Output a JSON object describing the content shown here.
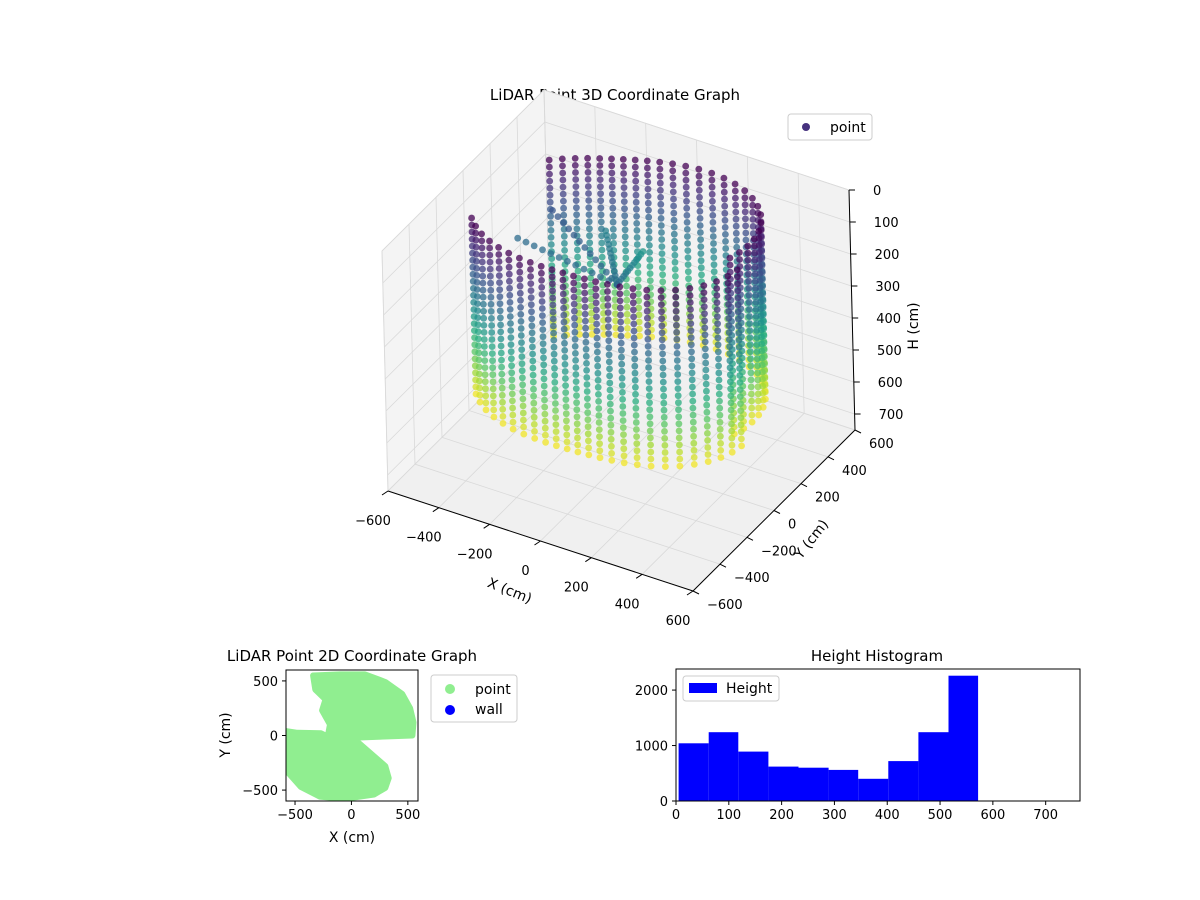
{
  "figure": {
    "background": "#ffffff"
  },
  "chart_data": [
    {
      "type": "scatter3d",
      "title": "LiDAR Point 3D Coordinate Graph",
      "xlabel": "X (cm)",
      "ylabel": "Y (cm)",
      "zlabel": "H (cm)",
      "xlim": [
        -600,
        600
      ],
      "ylim": [
        -600,
        600
      ],
      "zlim": [
        0,
        750
      ],
      "z_inverted": true,
      "x_ticks": [
        -600,
        -400,
        -200,
        0,
        200,
        400,
        600
      ],
      "x_tick_labels": [
        "−600",
        "−400",
        "−200",
        "0",
        "200",
        "400",
        "600"
      ],
      "y_ticks": [
        -600,
        -400,
        -200,
        0,
        200,
        400,
        600
      ],
      "y_tick_labels": [
        "−600",
        "−400",
        "−200",
        "0",
        "200",
        "400",
        "600"
      ],
      "z_ticks": [
        0,
        100,
        200,
        300,
        400,
        500,
        600,
        700
      ],
      "z_tick_labels": [
        "0",
        "100",
        "200",
        "300",
        "400",
        "500",
        "600",
        "700"
      ],
      "grid": true,
      "colormap": "viridis",
      "color_by": "height",
      "legend": {
        "position": "top-right",
        "entries": [
          {
            "label": "point",
            "color": "#46327e"
          }
        ]
      },
      "series": [
        {
          "name": "point",
          "description_shape": "ring of wall scan columns",
          "ring_radius": 450,
          "ring_gap_angle_range_deg": [
            150,
            210
          ],
          "column_height_range": [
            0,
            560
          ],
          "spoke_rays": [
            {
              "from": [
                0,
                0,
                200
              ],
              "to": [
                -450,
                80,
                200
              ]
            },
            {
              "from": [
                0,
                0,
                200
              ],
              "to": [
                -380,
                220,
                150
              ]
            },
            {
              "from": [
                0,
                0,
                200
              ],
              "to": [
                -250,
                380,
                250
              ]
            },
            {
              "from": [
                0,
                0,
                200
              ],
              "to": [
                -120,
                420,
                300
              ]
            }
          ]
        }
      ]
    },
    {
      "type": "scatter",
      "title": "LiDAR Point 2D Coordinate Graph",
      "xlabel": "X (cm)",
      "ylabel": "Y (cm)",
      "xlim": [
        -580,
        590
      ],
      "ylim": [
        -600,
        600
      ],
      "x_ticks": [
        -500,
        0,
        500
      ],
      "x_tick_labels": [
        "−500",
        "0",
        "500"
      ],
      "y_ticks": [
        -500,
        0,
        500
      ],
      "y_tick_labels": [
        "−500",
        "0",
        "500"
      ],
      "legend": {
        "position": "right-outside",
        "entries": [
          {
            "label": "point",
            "color": "#90ee90"
          },
          {
            "label": "wall",
            "color": "#0000ff"
          }
        ]
      },
      "series": [
        {
          "name": "point",
          "color": "#90ee90",
          "region_outline": [
            [
              -340,
              550
            ],
            [
              -100,
              560
            ],
            [
              120,
              560
            ],
            [
              300,
              490
            ],
            [
              450,
              380
            ],
            [
              520,
              250
            ],
            [
              550,
              120
            ],
            [
              540,
              0
            ],
            [
              10,
              -20
            ],
            [
              300,
              -280
            ],
            [
              330,
              -390
            ],
            [
              300,
              -480
            ],
            [
              200,
              -540
            ],
            [
              -60,
              -580
            ],
            [
              -280,
              -560
            ],
            [
              -450,
              -470
            ],
            [
              -570,
              -330
            ],
            [
              -590,
              -130
            ],
            [
              -580,
              40
            ],
            [
              -480,
              25
            ],
            [
              -270,
              20
            ],
            [
              -210,
              -10
            ],
            [
              -190,
              100
            ],
            [
              -260,
              230
            ],
            [
              -230,
              330
            ],
            [
              -320,
              420
            ]
          ]
        },
        {
          "name": "wall",
          "color": "#0000ff",
          "points": []
        }
      ]
    },
    {
      "type": "bar",
      "title": "Height Histogram",
      "xlabel": "",
      "ylabel": "",
      "xlim": [
        0,
        765
      ],
      "ylim": [
        0,
        2380
      ],
      "x_ticks": [
        0,
        100,
        200,
        300,
        400,
        500,
        600,
        700
      ],
      "x_tick_labels": [
        "0",
        "100",
        "200",
        "300",
        "400",
        "500",
        "600",
        "700"
      ],
      "y_ticks": [
        0,
        1000,
        2000
      ],
      "y_tick_labels": [
        "0",
        "1000",
        "2000"
      ],
      "legend": {
        "position": "top-left",
        "entries": [
          {
            "label": "Height",
            "color": "#0000ff"
          }
        ]
      },
      "bin_edges": [
        5,
        62,
        118,
        175,
        232,
        289,
        345,
        402,
        459,
        516,
        572
      ],
      "series": [
        {
          "name": "Height",
          "color": "#0000ff",
          "values": [
            1040,
            1240,
            890,
            620,
            600,
            560,
            400,
            720,
            1240,
            2260
          ]
        }
      ]
    }
  ]
}
